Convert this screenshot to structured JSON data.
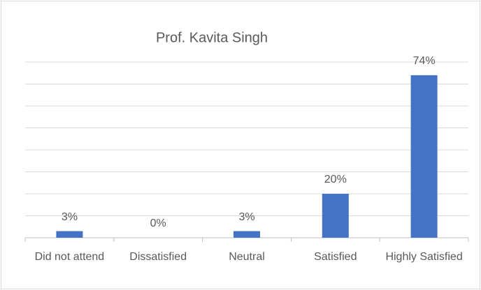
{
  "chart_data": {
    "type": "bar",
    "title": "Prof. Kavita Singh",
    "categories": [
      "Did not attend",
      "Dissatisfied",
      "Neutral",
      "Satisfied",
      "Highly Satisfied"
    ],
    "values": [
      3,
      0,
      3,
      20,
      74
    ],
    "value_labels": [
      "3%",
      "0%",
      "3%",
      "20%",
      "74%"
    ],
    "color": "#4472c4",
    "ylim": [
      0,
      80
    ],
    "yticks": [
      0,
      10,
      20,
      30,
      40,
      50,
      60,
      70,
      80
    ],
    "grid": true
  }
}
